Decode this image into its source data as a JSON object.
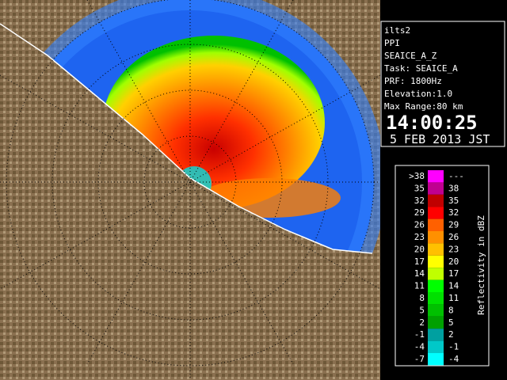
{
  "info": {
    "station": "ilts2",
    "mode": "PPI",
    "product": "SEAICE_A_Z",
    "task": "Task: SEAICE_A",
    "prf": "PRF: 1800Hz",
    "elevation": "Elevation:1.0",
    "max_range": "Max Range:80 km",
    "time": "14:00:25",
    "date": "5 FEB 2013 JST"
  },
  "legend": {
    "title": "Reflectivity in dBZ",
    "rows": [
      {
        "low": ">38",
        "high": "---",
        "color": "#ff00ff"
      },
      {
        "low": "35",
        "high": "38",
        "color": "#c00090"
      },
      {
        "low": "32",
        "high": "35",
        "color": "#c00000"
      },
      {
        "low": "29",
        "high": "32",
        "color": "#ff0000"
      },
      {
        "low": "26",
        "high": "29",
        "color": "#ff6000"
      },
      {
        "low": "23",
        "high": "26",
        "color": "#ff9000"
      },
      {
        "low": "20",
        "high": "23",
        "color": "#ffc000"
      },
      {
        "low": "17",
        "high": "20",
        "color": "#ffff00"
      },
      {
        "low": "14",
        "high": "17",
        "color": "#c0ff00"
      },
      {
        "low": "11",
        "high": "14",
        "color": "#00ff00"
      },
      {
        "low": "8",
        "high": "11",
        "color": "#00e000"
      },
      {
        "low": "5",
        "high": "8",
        "color": "#00c000"
      },
      {
        "low": "2",
        "high": "5",
        "color": "#00a000"
      },
      {
        "low": "-1",
        "high": "2",
        "color": "#00a0a0"
      },
      {
        "low": "-4",
        "high": "-1",
        "color": "#00c8c8"
      },
      {
        "low": "-7",
        "high": "-4",
        "color": "#00ffff"
      }
    ]
  }
}
